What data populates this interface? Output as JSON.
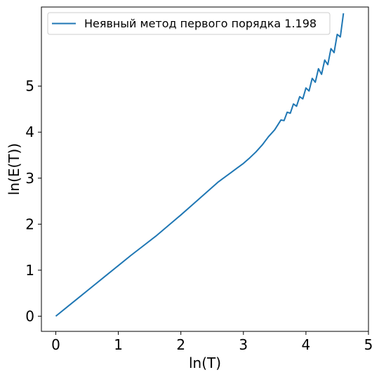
{
  "chart_data": {
    "type": "line",
    "title": "",
    "xlabel": "ln(T)",
    "ylabel": "ln(E(T))",
    "xlim": [
      -0.23,
      5.0
    ],
    "ylim": [
      -0.33,
      6.72
    ],
    "xticks": [
      0,
      1,
      2,
      3,
      4,
      5
    ],
    "yticks": [
      0,
      1,
      2,
      3,
      4,
      5
    ],
    "grid": false,
    "legend_position": "top-left",
    "series": [
      {
        "name": "Неявный метод первого порядка 1.198",
        "color": "#1f77b4",
        "x": [
          0.0,
          0.2,
          0.4,
          0.6,
          0.8,
          1.0,
          1.2,
          1.4,
          1.6,
          1.8,
          2.0,
          2.2,
          2.4,
          2.6,
          2.8,
          2.9,
          3.0,
          3.1,
          3.2,
          3.3,
          3.4,
          3.5,
          3.6,
          3.65,
          3.7,
          3.75,
          3.8,
          3.85,
          3.9,
          3.95,
          4.0,
          4.05,
          4.1,
          4.15,
          4.2,
          4.25,
          4.3,
          4.35,
          4.4,
          4.45,
          4.5,
          4.55,
          4.6
        ],
        "y": [
          0.0,
          0.22,
          0.44,
          0.66,
          0.88,
          1.1,
          1.32,
          1.53,
          1.74,
          1.97,
          2.2,
          2.44,
          2.68,
          2.92,
          3.12,
          3.22,
          3.32,
          3.44,
          3.57,
          3.72,
          3.9,
          4.05,
          4.22,
          4.3,
          4.38,
          4.47,
          4.55,
          4.63,
          4.7,
          4.8,
          4.88,
          4.98,
          5.08,
          5.18,
          5.28,
          5.36,
          5.46,
          5.58,
          5.7,
          5.85,
          6.0,
          6.2,
          6.45
        ]
      }
    ]
  }
}
